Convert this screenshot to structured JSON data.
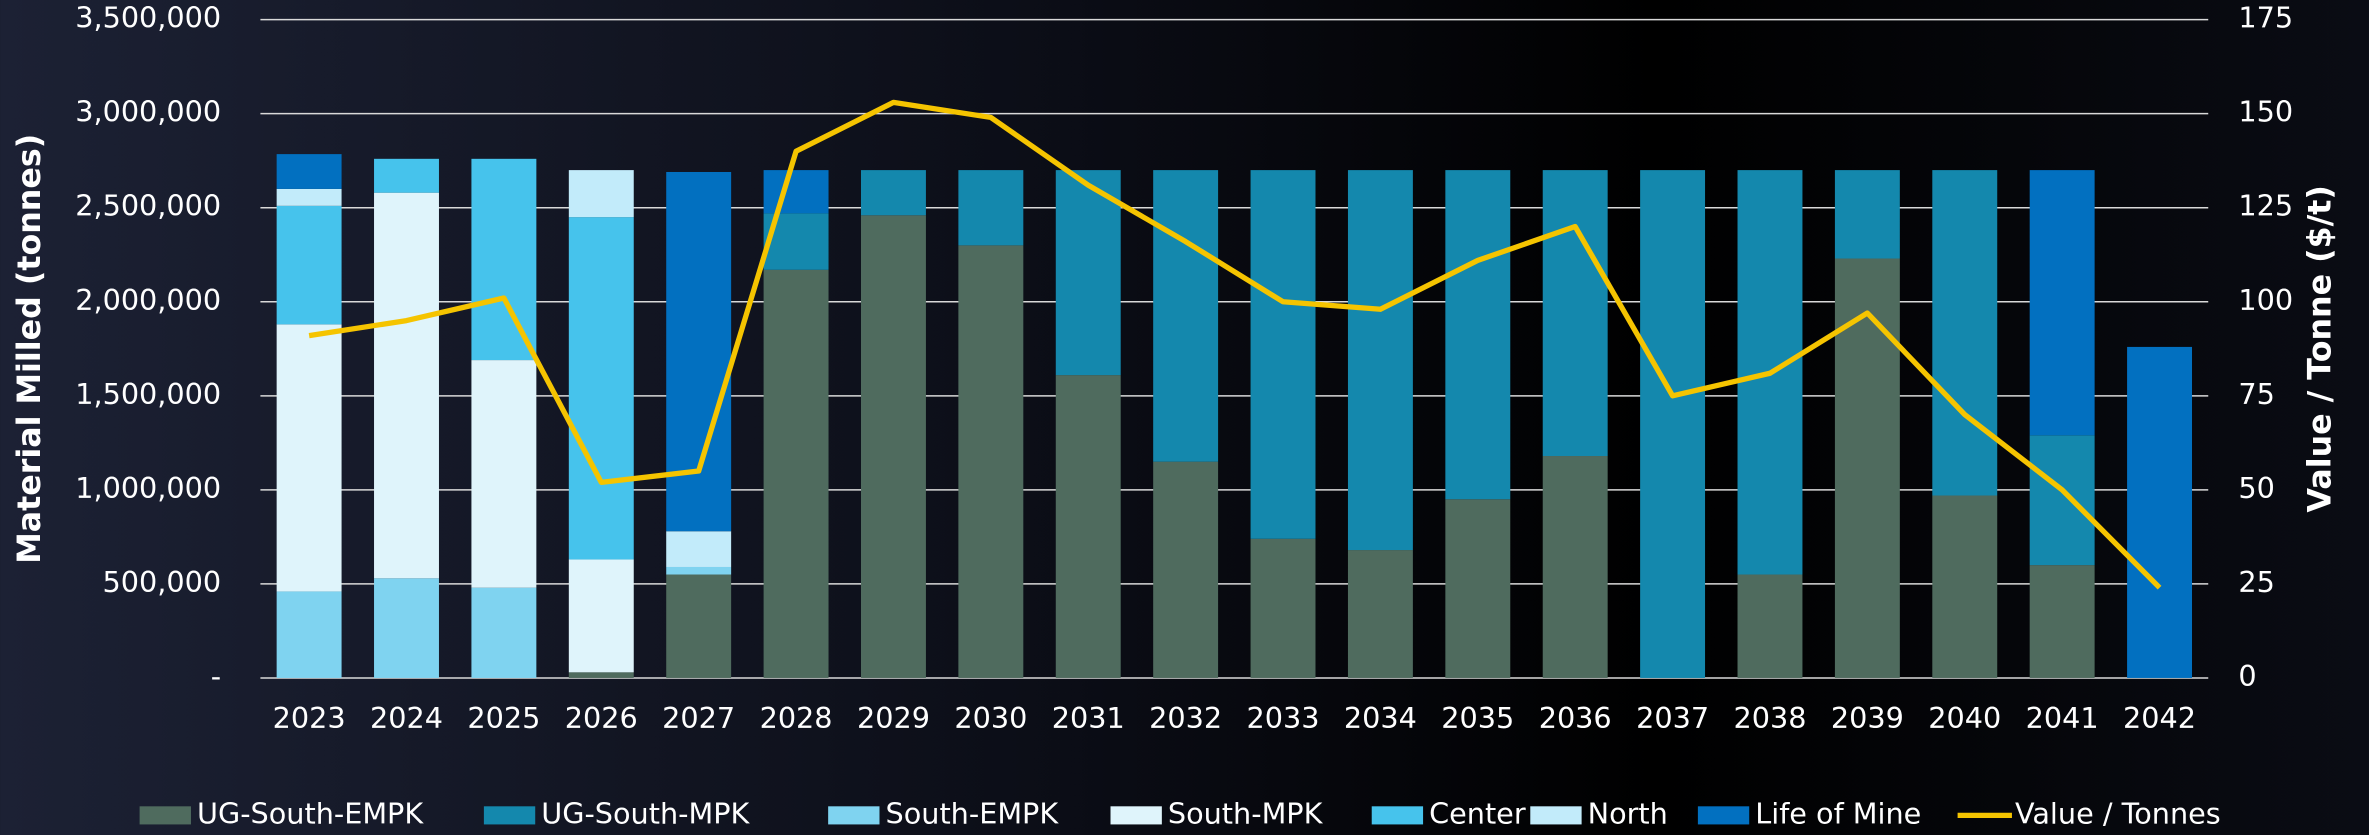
{
  "chart_data": {
    "type": "bar",
    "stacked": true,
    "categories": [
      "2023",
      "2024",
      "2025",
      "2026",
      "2027",
      "2028",
      "2029",
      "2030",
      "2031",
      "2032",
      "2033",
      "2034",
      "2035",
      "2036",
      "2037",
      "2038",
      "2039",
      "2040",
      "2041",
      "2042"
    ],
    "series": [
      {
        "name": "UG-South-EMPK",
        "color": "#4f6b5e",
        "values": [
          0,
          0,
          0,
          30000,
          550000,
          2170000,
          2460000,
          2300000,
          1610000,
          1150000,
          740000,
          680000,
          950000,
          1180000,
          0,
          550000,
          2230000,
          970000,
          600000,
          0
        ]
      },
      {
        "name": "UG-South-MPK",
        "color": "#1488ad",
        "values": [
          0,
          0,
          0,
          0,
          0,
          300000,
          240000,
          400000,
          1090000,
          1550000,
          1960000,
          2020000,
          1750000,
          1520000,
          2700000,
          2150000,
          470000,
          1730000,
          690000,
          0
        ]
      },
      {
        "name": "South-EMPK",
        "color": "#7fd3f0",
        "values": [
          460000,
          530000,
          480000,
          0,
          40000,
          0,
          0,
          0,
          0,
          0,
          0,
          0,
          0,
          0,
          0,
          0,
          0,
          0,
          0,
          0
        ]
      },
      {
        "name": "South-MPK",
        "color": "#dff4fb",
        "values": [
          1420000,
          2050000,
          1210000,
          600000,
          0,
          0,
          0,
          0,
          0,
          0,
          0,
          0,
          0,
          0,
          0,
          0,
          0,
          0,
          0,
          0
        ]
      },
      {
        "name": "Center",
        "color": "#46c3ec",
        "values": [
          630000,
          180000,
          1070000,
          1820000,
          0,
          0,
          0,
          0,
          0,
          0,
          0,
          0,
          0,
          0,
          0,
          0,
          0,
          0,
          0,
          0
        ]
      },
      {
        "name": "North",
        "color": "#c2ebfa",
        "values": [
          90000,
          0,
          0,
          250000,
          190000,
          0,
          0,
          0,
          0,
          0,
          0,
          0,
          0,
          0,
          0,
          0,
          0,
          0,
          0,
          0
        ]
      },
      {
        "name": "Life of Mine",
        "color": "#0270c0",
        "values": [
          185000,
          0,
          0,
          0,
          1910000,
          230000,
          0,
          0,
          0,
          0,
          0,
          0,
          0,
          0,
          0,
          0,
          0,
          0,
          1410000,
          1760000
        ]
      },
      {
        "name": "Value / Tonnes",
        "type": "line",
        "axis": "y2",
        "color": "#f5c400",
        "values": [
          91,
          95,
          101,
          52,
          55,
          140,
          153,
          149,
          131,
          116,
          100,
          98,
          111,
          120,
          75,
          81,
          97,
          70,
          50,
          24
        ]
      }
    ],
    "ylabel": "Material Milled (tonnes)",
    "y2label": "Value / Tonne ($/t)",
    "ylim": [
      0,
      3500000
    ],
    "yticks": [
      {
        "value": 0,
        "label": "-"
      },
      {
        "value": 500000,
        "label": "500,000"
      },
      {
        "value": 1000000,
        "label": "1,000,000"
      },
      {
        "value": 1500000,
        "label": "1,500,000"
      },
      {
        "value": 2000000,
        "label": "2,000,000"
      },
      {
        "value": 2500000,
        "label": "2,500,000"
      },
      {
        "value": 3000000,
        "label": "3,000,000"
      },
      {
        "value": 3500000,
        "label": "3,500,000"
      }
    ],
    "y2lim": [
      0,
      175
    ],
    "y2ticks": [
      0,
      25,
      50,
      75,
      100,
      125,
      150,
      175
    ],
    "grid": true,
    "legend": "bottom"
  }
}
